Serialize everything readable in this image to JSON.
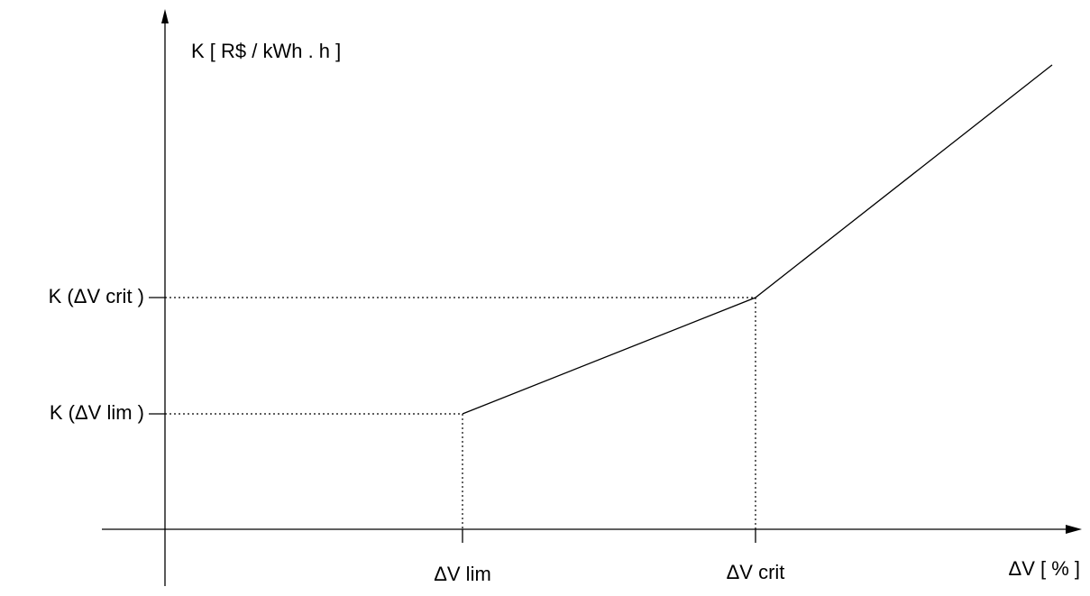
{
  "y_axis_label": "K [ R$ / kWh . h ]",
  "x_axis_label": "ΔV [ % ]",
  "y_labels": [
    "K (ΔV crit )",
    "K (ΔV lim )"
  ],
  "x_labels": [
    "ΔV lim",
    "ΔV crit"
  ]
}
